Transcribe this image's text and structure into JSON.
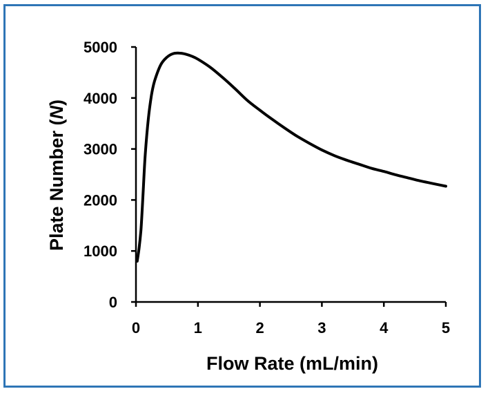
{
  "chart_data": {
    "type": "line",
    "title": "",
    "xlabel": "Flow Rate (mL/min)",
    "ylabel_prefix": "Plate Number (",
    "ylabel_italic": "N",
    "ylabel_suffix": ")",
    "xlim": [
      0,
      5
    ],
    "ylim": [
      0,
      5000
    ],
    "xticks": [
      0,
      1,
      2,
      3,
      4,
      5
    ],
    "yticks": [
      0,
      1000,
      2000,
      3000,
      4000,
      5000
    ],
    "grid": false,
    "legend": "none",
    "line_color": "#000000",
    "frame_color": "#2e75b6",
    "series": [
      {
        "x": [
          0.02,
          0.05,
          0.08,
          0.1,
          0.12,
          0.15,
          0.2,
          0.25,
          0.3,
          0.4,
          0.5,
          0.6,
          0.7,
          0.8,
          0.9,
          1.0,
          1.2,
          1.4,
          1.6,
          1.8,
          2.0,
          2.2,
          2.4,
          2.6,
          2.8,
          3.0,
          3.2,
          3.4,
          3.6,
          3.8,
          4.0,
          4.2,
          4.4,
          4.6,
          4.8,
          5.0
        ],
        "y": [
          800,
          1050,
          1400,
          1800,
          2250,
          2900,
          3600,
          4050,
          4330,
          4650,
          4800,
          4870,
          4880,
          4860,
          4820,
          4760,
          4600,
          4400,
          4180,
          3950,
          3760,
          3580,
          3410,
          3250,
          3110,
          2980,
          2870,
          2780,
          2700,
          2620,
          2560,
          2490,
          2430,
          2370,
          2320,
          2270
        ]
      }
    ]
  }
}
